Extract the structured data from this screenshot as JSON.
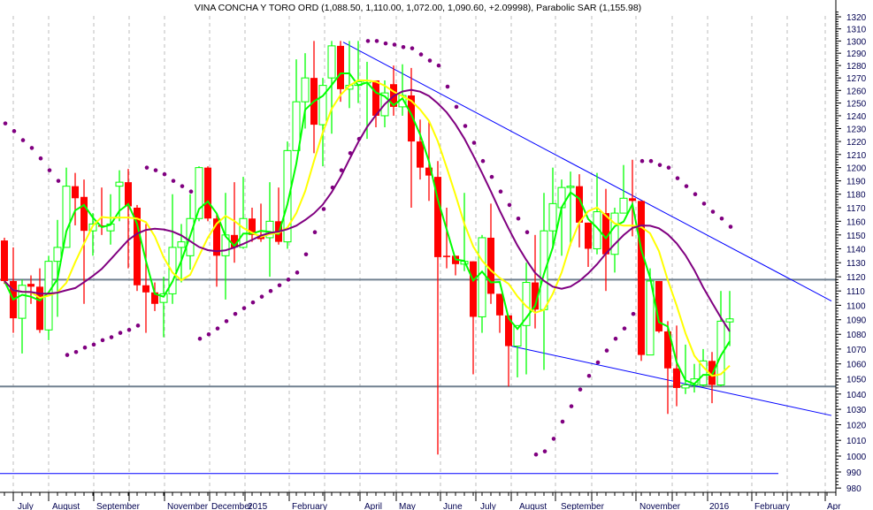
{
  "chart_data": {
    "type": "candlestick",
    "title": "VINA CONCHA Y TORO ORD (1,088.50, 1,110.00, 1,072.00, 1,090.60, +2.09998), Parabolic SAR (1,155.98)",
    "y_scale": "log",
    "ylim": [
      980,
      1320
    ],
    "y_ticks": [
      1320,
      1310,
      1300,
      1290,
      1280,
      1270,
      1260,
      1250,
      1240,
      1230,
      1220,
      1210,
      1200,
      1190,
      1180,
      1170,
      1160,
      1150,
      1140,
      1130,
      1120,
      1110,
      1100,
      1090,
      1080,
      1070,
      1060,
      1050,
      1040,
      1030,
      1020,
      1010,
      1000,
      990,
      980
    ],
    "grid": "vertical dashed at month starts",
    "month_ticks": [
      1,
      5,
      10.1,
      14.1,
      18.1,
      23.2,
      27.2,
      32.2,
      36.2,
      40.2,
      44.3,
      49.3,
      53.3,
      57.3,
      62.3,
      66.4,
      71.4,
      75.5,
      79.5,
      84.5,
      88.5,
      92.8
    ],
    "x_labels": [
      {
        "label": "July",
        "bar": 1.3
      },
      {
        "label": "August",
        "bar": 5.2
      },
      {
        "label": "September",
        "bar": 10.2
      },
      {
        "label": "November",
        "bar": 18.2
      },
      {
        "label": "December",
        "bar": 23.2
      },
      {
        "label": "2015",
        "bar": 27.3
      },
      {
        "label": "February",
        "bar": 32.3
      },
      {
        "label": "April",
        "bar": 40.5
      },
      {
        "label": "May",
        "bar": 44.4
      },
      {
        "label": "June",
        "bar": 49.4
      },
      {
        "label": "July",
        "bar": 53.6
      },
      {
        "label": "August",
        "bar": 58
      },
      {
        "label": "September",
        "bar": 62.7
      },
      {
        "label": "November",
        "bar": 71.6
      },
      {
        "label": "2016",
        "bar": 79.5
      },
      {
        "label": "February",
        "bar": 84.6
      },
      {
        "label": "Apr",
        "bar": 92.8
      }
    ],
    "ohlc_columns": [
      "open",
      "high",
      "low",
      "close"
    ],
    "ohlc": [
      [
        1146,
        1148,
        1115,
        1117
      ],
      [
        1117,
        1141,
        1081,
        1091
      ],
      [
        1091,
        1118,
        1067,
        1114
      ],
      [
        1115,
        1121,
        1101,
        1113
      ],
      [
        1113,
        1126,
        1081,
        1083
      ],
      [
        1083,
        1135,
        1076,
        1131
      ],
      [
        1131,
        1161,
        1092,
        1141
      ],
      [
        1141,
        1200,
        1141,
        1186
      ],
      [
        1186,
        1196,
        1157,
        1177
      ],
      [
        1178,
        1191,
        1101,
        1153
      ],
      [
        1153,
        1166,
        1135,
        1158
      ],
      [
        1157,
        1185,
        1150,
        1156
      ],
      [
        1153,
        1180,
        1143,
        1158
      ],
      [
        1186,
        1198,
        1160,
        1189
      ],
      [
        1189,
        1199,
        1126,
        1171
      ],
      [
        1170,
        1172,
        1110,
        1114
      ],
      [
        1114,
        1158,
        1081,
        1109
      ],
      [
        1109,
        1116,
        1096,
        1101
      ],
      [
        1102,
        1120,
        1078,
        1108
      ],
      [
        1108,
        1180,
        1101,
        1141
      ],
      [
        1141,
        1158,
        1116,
        1145
      ],
      [
        1135,
        1180,
        1125,
        1162
      ],
      [
        1162,
        1201,
        1160,
        1200
      ],
      [
        1200,
        1201,
        1160,
        1162
      ],
      [
        1162,
        1165,
        1113,
        1135
      ],
      [
        1135,
        1181,
        1104,
        1150
      ],
      [
        1150,
        1189,
        1130,
        1141
      ],
      [
        1141,
        1193,
        1140,
        1162
      ],
      [
        1162,
        1170,
        1145,
        1150
      ],
      [
        1150,
        1173,
        1145,
        1147
      ],
      [
        1148,
        1189,
        1120,
        1160
      ],
      [
        1160,
        1185,
        1143,
        1145
      ],
      [
        1145,
        1220,
        1140,
        1213
      ],
      [
        1213,
        1285,
        1213,
        1251
      ],
      [
        1251,
        1290,
        1230,
        1270
      ],
      [
        1270,
        1300,
        1211,
        1233
      ],
      [
        1233,
        1270,
        1201,
        1264
      ],
      [
        1270,
        1300,
        1226,
        1296
      ],
      [
        1296,
        1300,
        1251,
        1261
      ],
      [
        1261,
        1300,
        1246,
        1264
      ],
      [
        1264,
        1300,
        1250,
        1267
      ],
      [
        1266,
        1283,
        1222,
        1268
      ],
      [
        1268,
        1268,
        1231,
        1240
      ],
      [
        1240,
        1268,
        1231,
        1258
      ],
      [
        1265,
        1280,
        1240,
        1247
      ],
      [
        1247,
        1281,
        1240,
        1256
      ],
      [
        1256,
        1278,
        1170,
        1220
      ],
      [
        1220,
        1237,
        1191,
        1200
      ],
      [
        1200,
        1236,
        1175,
        1194
      ],
      [
        1193,
        1205,
        1001,
        1134
      ],
      [
        1135,
        1170,
        1126,
        1134
      ],
      [
        1135,
        1135,
        1121,
        1129
      ],
      [
        1129,
        1181,
        1124,
        1131
      ],
      [
        1131,
        1131,
        1053,
        1092
      ],
      [
        1092,
        1150,
        1081,
        1148
      ],
      [
        1148,
        1173,
        1101,
        1108
      ],
      [
        1108,
        1108,
        1081,
        1093
      ],
      [
        1093,
        1093,
        1045,
        1072
      ],
      [
        1072,
        1086,
        1051,
        1086
      ],
      [
        1086,
        1130,
        1053,
        1116
      ],
      [
        1116,
        1150,
        1084,
        1097
      ],
      [
        1097,
        1181,
        1056,
        1153
      ],
      [
        1153,
        1200,
        1140,
        1173
      ],
      [
        1170,
        1191,
        1135,
        1185
      ],
      [
        1185,
        1197,
        1142,
        1186
      ],
      [
        1186,
        1195,
        1141,
        1159
      ],
      [
        1159,
        1159,
        1127,
        1140
      ],
      [
        1140,
        1196,
        1136,
        1167
      ],
      [
        1166,
        1184,
        1110,
        1136
      ],
      [
        1136,
        1170,
        1123,
        1166
      ],
      [
        1166,
        1202,
        1166,
        1177
      ],
      [
        1177,
        1206,
        1149,
        1175
      ],
      [
        1175,
        1175,
        1062,
        1066
      ],
      [
        1066,
        1126,
        1066,
        1117
      ],
      [
        1117,
        1117,
        1081,
        1082
      ],
      [
        1082,
        1089,
        1027,
        1057
      ],
      [
        1057,
        1086,
        1032,
        1044
      ],
      [
        1044,
        1073,
        1040,
        1046
      ],
      [
        1046,
        1060,
        1041,
        1050
      ],
      [
        1046,
        1070,
        1045,
        1062
      ],
      [
        1062,
        1068,
        1034,
        1046
      ],
      [
        1046,
        1110,
        1045,
        1089
      ],
      [
        1088.5,
        1110,
        1072,
        1090.6
      ]
    ],
    "parabolic_sar": [
      1234,
      1228,
      1221,
      1215,
      1207,
      1198,
      1190,
      1066,
      1068,
      1071,
      1073,
      1076,
      1078,
      1081,
      1083,
      1086,
      1200,
      1198,
      1195,
      1190,
      1186,
      1182,
      1077,
      1080,
      1084,
      1089,
      1094,
      1098,
      1102,
      1106,
      1110,
      1114,
      1118,
      1123,
      1136,
      1152,
      1169,
      1185,
      1198,
      1211,
      1222,
      1300,
      1300,
      1298,
      1297,
      1295,
      1294,
      1289,
      1284,
      1280,
      1263,
      1247,
      1232,
      1219,
      1205,
      1193,
      1182,
      1172,
      1162,
      1152,
      1001,
      1003,
      1011,
      1022,
      1032,
      1043,
      1052,
      1061,
      1069,
      1077,
      1084,
      1094,
      1205,
      1205,
      1202,
      1200,
      1192,
      1186,
      1180,
      1173,
      1167,
      1162,
      1155.98
    ],
    "horizontal_lines": [
      {
        "price": 1118,
        "color": "#708090"
      },
      {
        "price": 1045,
        "color": "#708090"
      },
      {
        "price": 989,
        "color": "#0000ff",
        "to_bar": 87.5
      }
    ],
    "trend_lines": [
      {
        "from": {
          "bar": 38.3,
          "price": 1299
        },
        "to": {
          "bar": 93.5,
          "price": 1103
        },
        "color": "#0000ff"
      },
      {
        "from": {
          "bar": 57.3,
          "price": 1072
        },
        "to": {
          "bar": 93.5,
          "price": 1026
        },
        "color": "#0000ff"
      }
    ],
    "colors": {
      "down_candle": "#ff0000",
      "up_candle": "#00ff00",
      "fast_ma": "#00ff00",
      "mid_ma": "#ffff00",
      "slow_ma": "#800080",
      "sar": "#800080",
      "axis_text": "#000050",
      "grid": "#bdbdbd"
    }
  }
}
